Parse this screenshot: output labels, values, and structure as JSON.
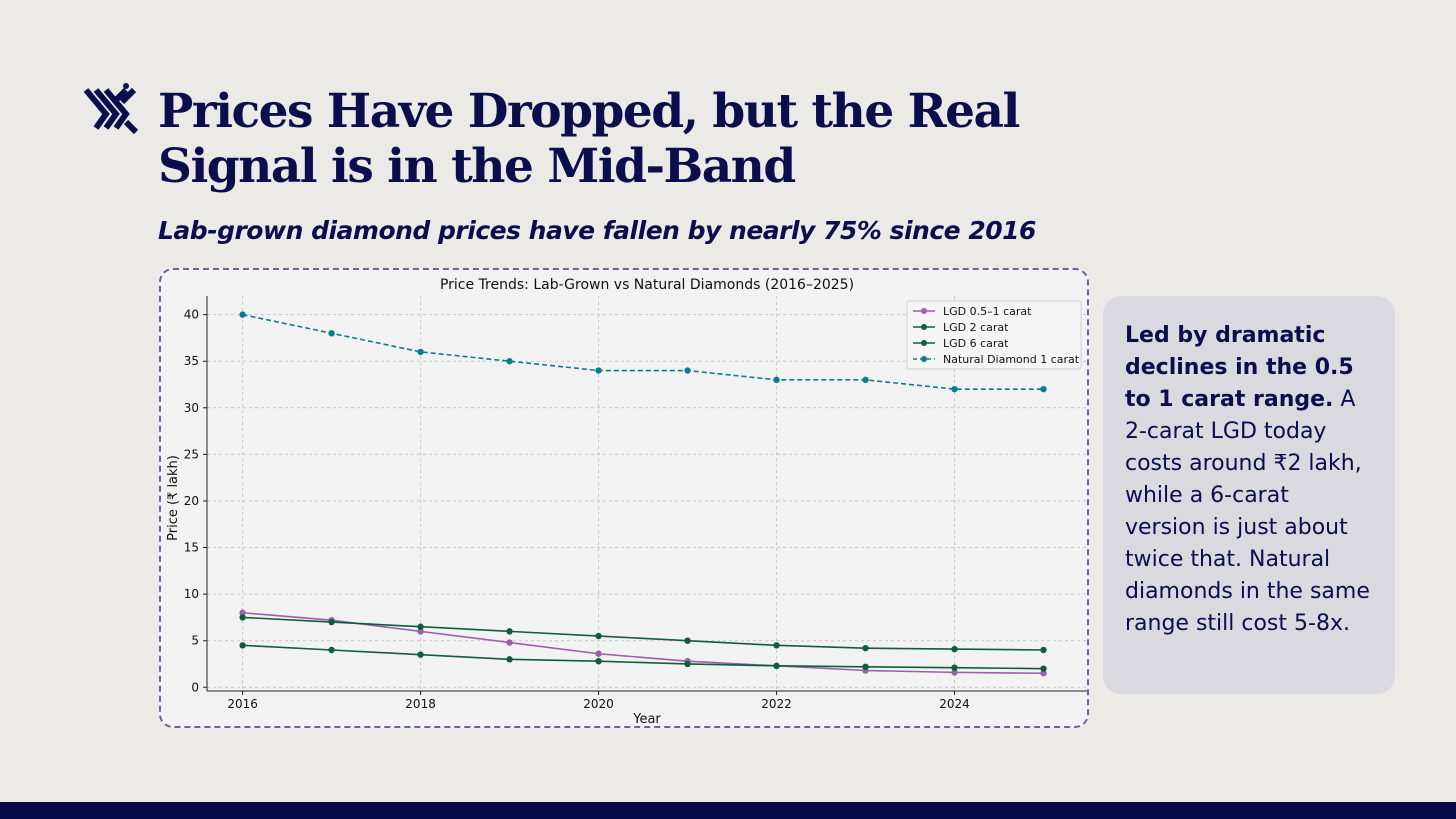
{
  "slide": {
    "title": "Prices Have Dropped, but the Real Signal is in the Mid-Band",
    "subtitle": "Lab-grown diamond prices have fallen by nearly 75% since 2016",
    "logo_icon": "brand-monogram-icon"
  },
  "side_card": {
    "lead": "Led by dramatic declines in the 0.5 to 1 carat range.",
    "body": " A 2-carat LGD today costs around ₹2 lakh, while a 6-carat version is just about twice that. Natural diamonds in the same range still cost 5-8x."
  },
  "colors": {
    "title": "#0b0d4d",
    "frame_border": "#6f5fa0",
    "footer": "#080a4a",
    "lgd_05_1": "#a05ea8",
    "lgd_2": "#0e5e3a",
    "lgd_6": "#0e5e3a",
    "natural": "#0a7d8c"
  },
  "chart_data": {
    "type": "line",
    "title": "Price Trends: Lab-Grown vs Natural Diamonds (2016–2025)",
    "xlabel": "Year",
    "ylabel": "Price (₹ lakh)",
    "x": [
      2016,
      2017,
      2018,
      2019,
      2020,
      2021,
      2022,
      2023,
      2024,
      2025
    ],
    "xticks": [
      2016,
      2018,
      2020,
      2022,
      2024
    ],
    "yticks": [
      0,
      5,
      10,
      15,
      20,
      25,
      30,
      35,
      40
    ],
    "xlim": [
      2015.6,
      2025.5
    ],
    "ylim": [
      -0.4,
      42
    ],
    "grid": true,
    "legend_position": "top-right",
    "series": [
      {
        "name": "LGD 0.5–1 carat",
        "color": "#a05ea8",
        "dashed": false,
        "values": [
          8.0,
          7.2,
          6.0,
          4.8,
          3.6,
          2.8,
          2.3,
          1.8,
          1.6,
          1.5
        ]
      },
      {
        "name": "LGD 2 carat",
        "color": "#0e5e3a",
        "dashed": false,
        "values": [
          4.5,
          4.0,
          3.5,
          3.0,
          2.8,
          2.5,
          2.3,
          2.2,
          2.1,
          2.0
        ]
      },
      {
        "name": "LGD 6 carat",
        "color": "#0e5e3a",
        "dashed": false,
        "values": [
          7.5,
          7.0,
          6.5,
          6.0,
          5.5,
          5.0,
          4.5,
          4.2,
          4.1,
          4.0
        ]
      },
      {
        "name": "Natural Diamond 1 carat",
        "color": "#0a7d8c",
        "dashed": true,
        "values": [
          40,
          38,
          36,
          35,
          34,
          34,
          33,
          33,
          32,
          32
        ]
      }
    ]
  }
}
